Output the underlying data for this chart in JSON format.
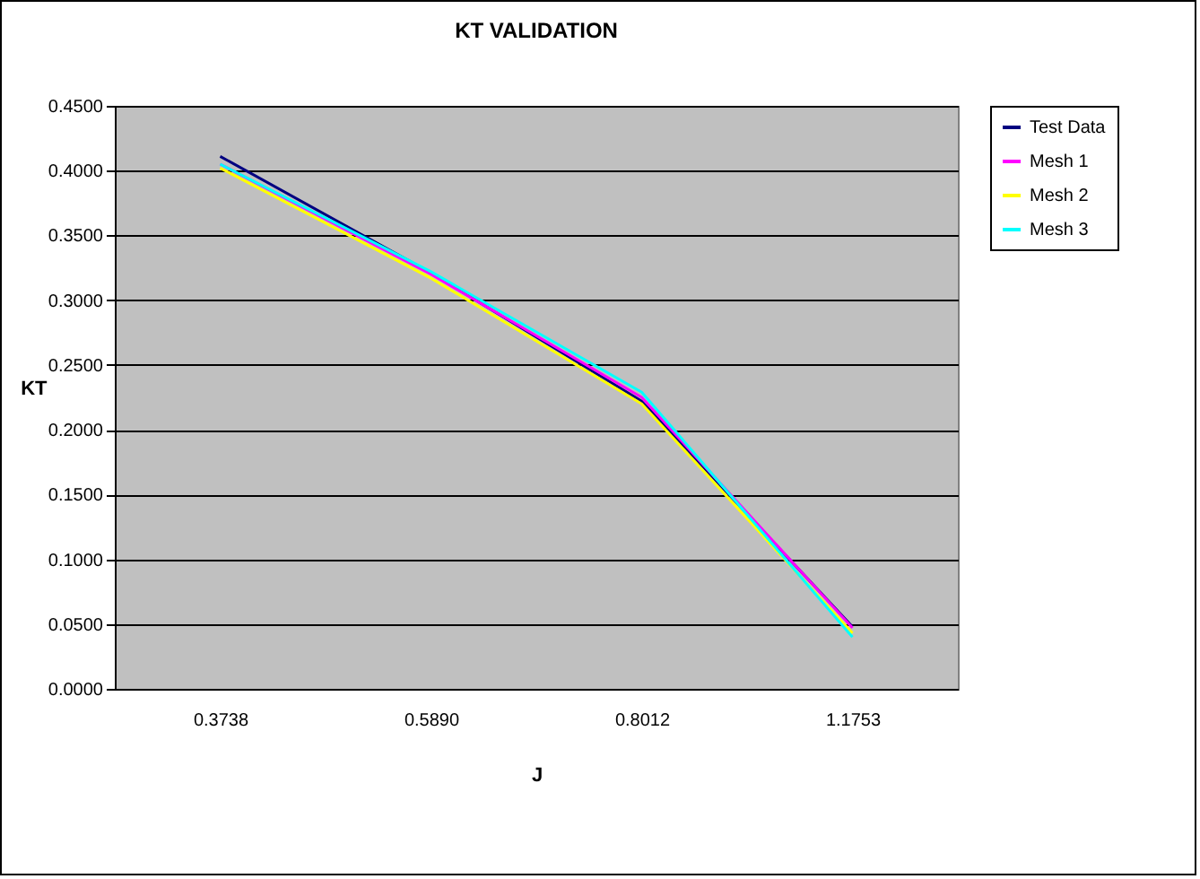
{
  "chart_data": {
    "type": "line",
    "title": "KT VALIDATION",
    "xlabel": "J",
    "ylabel": "KT",
    "categories": [
      "0.3738",
      "0.5890",
      "0.8012",
      "1.1753"
    ],
    "series": [
      {
        "name": "Test Data",
        "color": "#000080",
        "values": [
          0.411,
          0.321,
          0.222,
          0.048
        ]
      },
      {
        "name": "Mesh 1",
        "color": "#ff00ff",
        "values": [
          0.405,
          0.32,
          0.225,
          0.047
        ]
      },
      {
        "name": "Mesh 2",
        "color": "#ffff00",
        "values": [
          0.402,
          0.317,
          0.22,
          0.043
        ]
      },
      {
        "name": "Mesh 3",
        "color": "#00ffff",
        "values": [
          0.405,
          0.322,
          0.229,
          0.04
        ]
      }
    ],
    "ylim": [
      0,
      0.45
    ],
    "yticks": [
      {
        "value": 0,
        "label": "0.0000"
      },
      {
        "value": 0.05,
        "label": "0.0500"
      },
      {
        "value": 0.1,
        "label": "0.1000"
      },
      {
        "value": 0.15,
        "label": "0.1500"
      },
      {
        "value": 0.2,
        "label": "0.2000"
      },
      {
        "value": 0.25,
        "label": "0.2500"
      },
      {
        "value": 0.3,
        "label": "0.3000"
      },
      {
        "value": 0.35,
        "label": "0.3500"
      },
      {
        "value": 0.4,
        "label": "0.4000"
      },
      {
        "value": 0.45,
        "label": "0.4500"
      }
    ],
    "grid": "y",
    "legend": "right",
    "marker": "none",
    "line_style": "solid"
  }
}
